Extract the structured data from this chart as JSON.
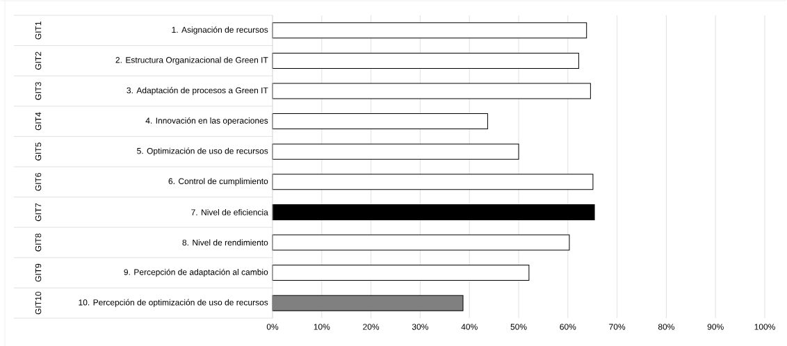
{
  "chart_data": {
    "type": "bar",
    "orientation": "horizontal",
    "categories": [
      "1. Asignación de recursos",
      "2. Estructura Organizacional de Green IT",
      "3. Adaptación de procesos a Green IT",
      "4. Innovación en las operaciones",
      "5. Optimización de uso de recursos",
      "6. Control de cumplimiento",
      "7. Nivel de eficiencia",
      "8. Nivel de rendimiento",
      "9. Percepción de adaptación al cambio",
      "10. Percepción de optimización de uso de recursos"
    ],
    "values": [
      63.8,
      62.2,
      64.6,
      43.7,
      50.0,
      65.1,
      65.4,
      60.3,
      52.1,
      38.7
    ],
    "colors": [
      "#ffffff",
      "#ffffff",
      "#ffffff",
      "#ffffff",
      "#ffffff",
      "#ffffff",
      "#000000",
      "#ffffff",
      "#ffffff",
      "#808080"
    ],
    "annotations": [
      "GIT1",
      "GIT2",
      "GIT3",
      "GIT4",
      "GIT5",
      "GIT6",
      "GIT7",
      "GIT8",
      "GIT9",
      "GIT10"
    ],
    "xlim": [
      0,
      100
    ],
    "xticks": [
      {
        "value": 0,
        "label": "0%"
      },
      {
        "value": 10,
        "label": "10%"
      },
      {
        "value": 20,
        "label": "20%"
      },
      {
        "value": 30,
        "label": "30%"
      },
      {
        "value": 40,
        "label": "40%"
      },
      {
        "value": 50,
        "label": "50%"
      },
      {
        "value": 60,
        "label": "60%"
      },
      {
        "value": 70,
        "label": "70%"
      },
      {
        "value": 80,
        "label": "80%"
      },
      {
        "value": 90,
        "label": "90%"
      },
      {
        "value": 100,
        "label": "100%"
      }
    ],
    "grid": "x"
  }
}
